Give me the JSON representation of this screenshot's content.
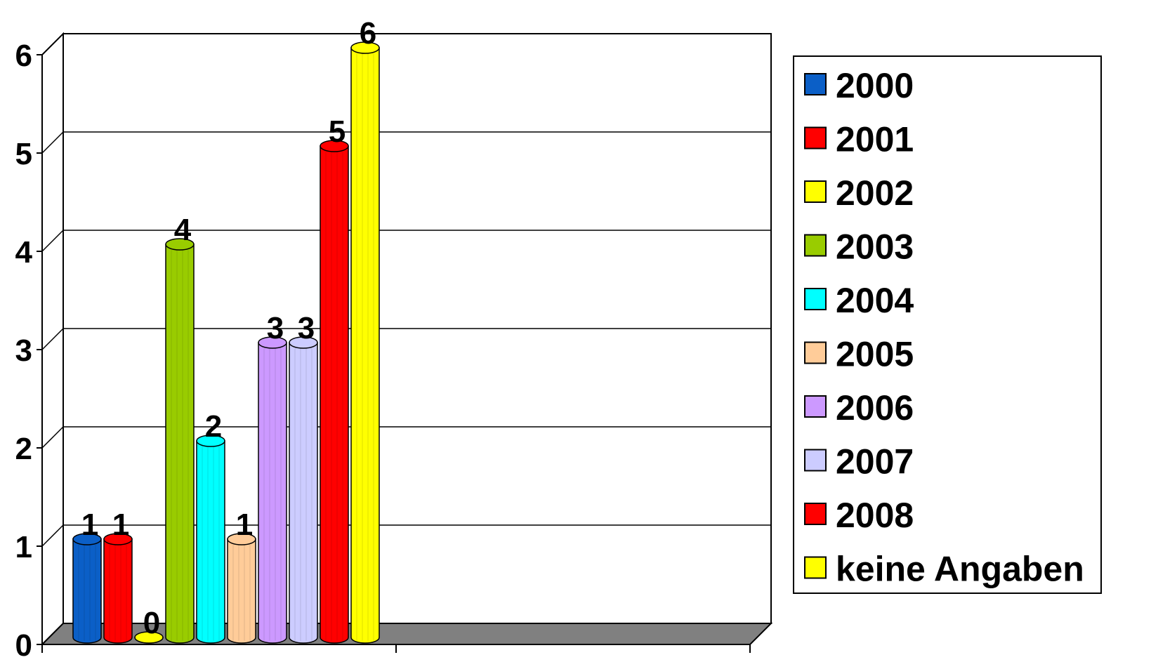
{
  "chart_data": {
    "type": "bar",
    "style": "3d-cylinder",
    "title": "",
    "xlabel": "",
    "ylabel": "",
    "ylim": [
      0,
      6
    ],
    "yticks": [
      0,
      1,
      2,
      3,
      4,
      5,
      6
    ],
    "grid": true,
    "legend_position": "right",
    "show_data_labels": true,
    "series": [
      {
        "name": "2000",
        "value": 1,
        "color": "#0b5fc7"
      },
      {
        "name": "2001",
        "value": 1,
        "color": "#ff0000"
      },
      {
        "name": "2002",
        "value": 0,
        "color": "#ffff00"
      },
      {
        "name": "2003",
        "value": 4,
        "color": "#99cc00"
      },
      {
        "name": "2004",
        "value": 2,
        "color": "#00ffff"
      },
      {
        "name": "2005",
        "value": 1,
        "color": "#ffcc99"
      },
      {
        "name": "2006",
        "value": 3,
        "color": "#cc99ff"
      },
      {
        "name": "2007",
        "value": 3,
        "color": "#ccccff"
      },
      {
        "name": "2008",
        "value": 5,
        "color": "#ff0000"
      },
      {
        "name": "keine Angaben",
        "value": 6,
        "color": "#ffff00"
      }
    ]
  }
}
